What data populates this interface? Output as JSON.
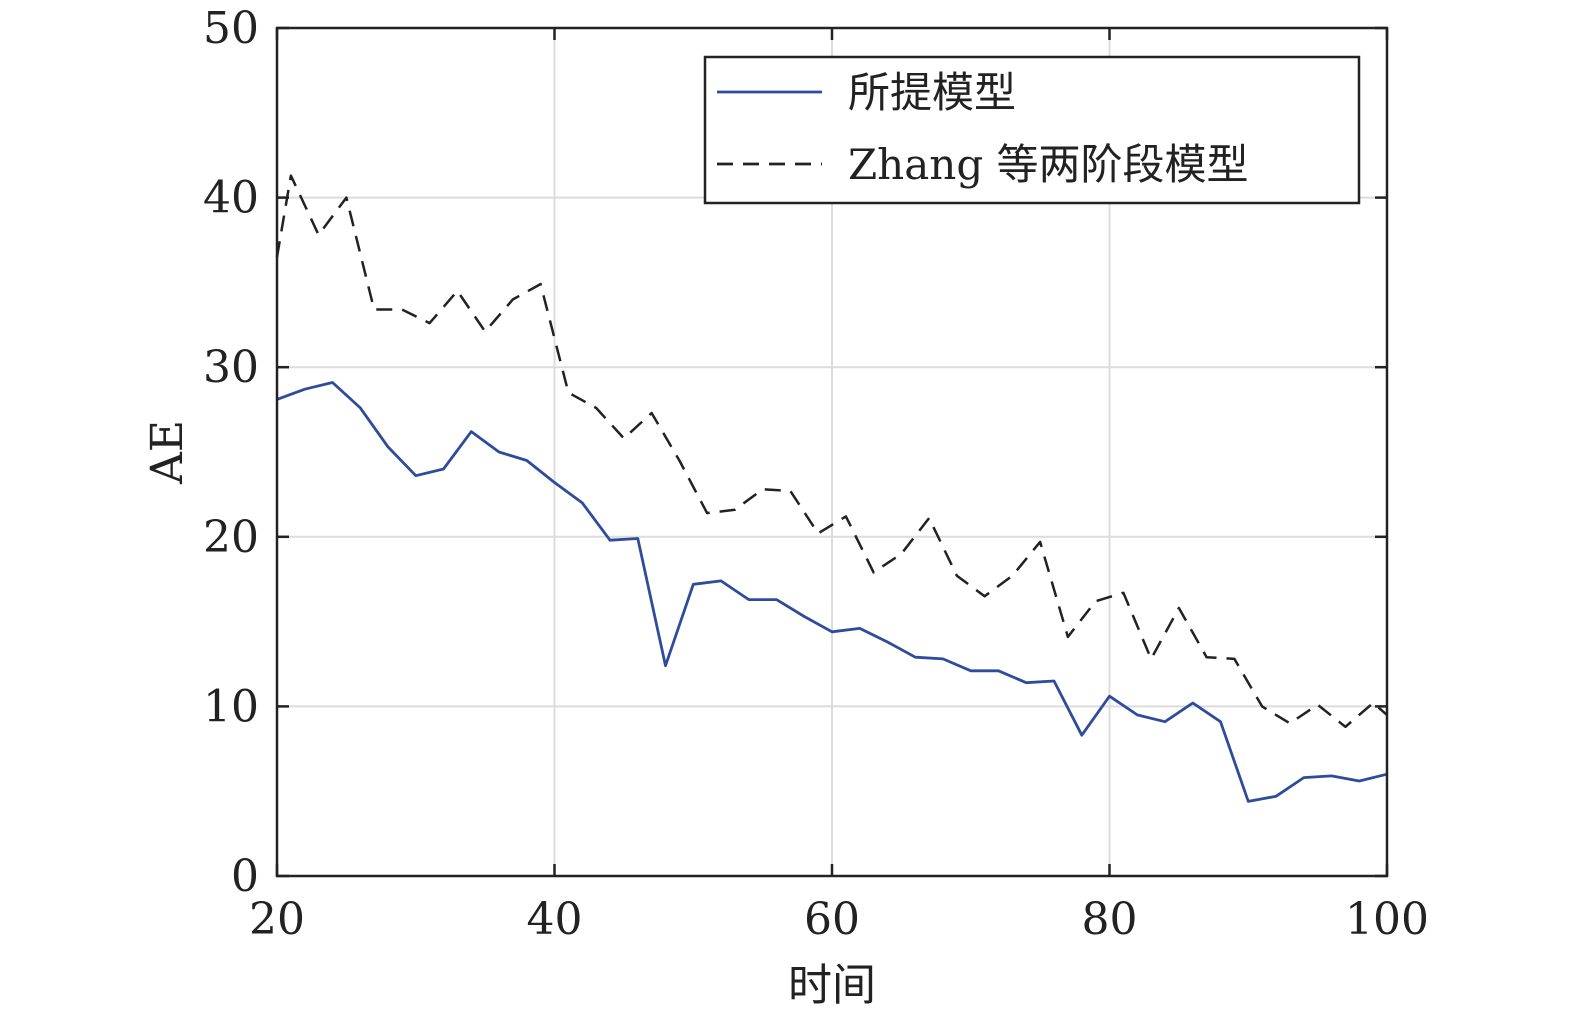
{
  "chart_data": {
    "type": "line",
    "title": "",
    "xlabel": "时间",
    "ylabel": "AE",
    "xlim": [
      20,
      100
    ],
    "ylim": [
      0,
      50
    ],
    "xticks": [
      20,
      40,
      60,
      80,
      100
    ],
    "yticks": [
      0,
      10,
      20,
      30,
      40,
      50
    ],
    "grid": true,
    "legend_position": "top-right",
    "series": [
      {
        "name": "所提模型",
        "color": "#2f4b9a",
        "style": "solid",
        "x": [
          20,
          22,
          24,
          26,
          28,
          30,
          32,
          34,
          36,
          38,
          40,
          42,
          44,
          46,
          48,
          50,
          52,
          54,
          56,
          58,
          60,
          62,
          64,
          66,
          68,
          70,
          72,
          74,
          76,
          78,
          80,
          82,
          84,
          86,
          88,
          90,
          92,
          94,
          96,
          98,
          100
        ],
        "values": [
          28.1,
          28.7,
          29.1,
          27.6,
          25.3,
          23.6,
          24.0,
          26.2,
          25.0,
          24.5,
          23.2,
          22.0,
          19.8,
          19.9,
          12.4,
          17.2,
          17.4,
          16.3,
          16.3,
          15.3,
          14.4,
          14.6,
          13.8,
          12.9,
          12.8,
          12.1,
          12.1,
          11.4,
          11.5,
          8.3,
          10.6,
          9.5,
          9.1,
          10.2,
          9.1,
          4.4,
          4.7,
          5.8,
          5.9,
          5.6,
          6.0
        ]
      },
      {
        "name": "Zhang 等两阶段模型",
        "color": "#222222",
        "style": "dashed",
        "x": [
          20,
          21,
          23,
          25,
          27,
          29,
          31,
          33,
          35,
          37,
          39,
          41,
          43,
          45,
          47,
          49,
          51,
          53,
          55,
          57,
          59,
          61,
          63,
          65,
          67,
          69,
          71,
          73,
          75,
          77,
          79,
          81,
          83,
          85,
          87,
          89,
          91,
          93,
          95,
          97,
          99,
          100
        ],
        "values": [
          36.5,
          41.3,
          37.8,
          40.0,
          33.4,
          33.4,
          32.6,
          34.5,
          32.1,
          34.0,
          34.9,
          28.5,
          27.6,
          25.8,
          27.3,
          24.5,
          21.4,
          21.6,
          22.8,
          22.7,
          20.2,
          21.2,
          17.9,
          19.0,
          21.1,
          17.7,
          16.5,
          17.7,
          19.7,
          14.1,
          16.2,
          16.7,
          12.8,
          15.8,
          12.9,
          12.8,
          10.0,
          9.0,
          10.1,
          8.8,
          10.2,
          9.5
        ]
      }
    ]
  }
}
